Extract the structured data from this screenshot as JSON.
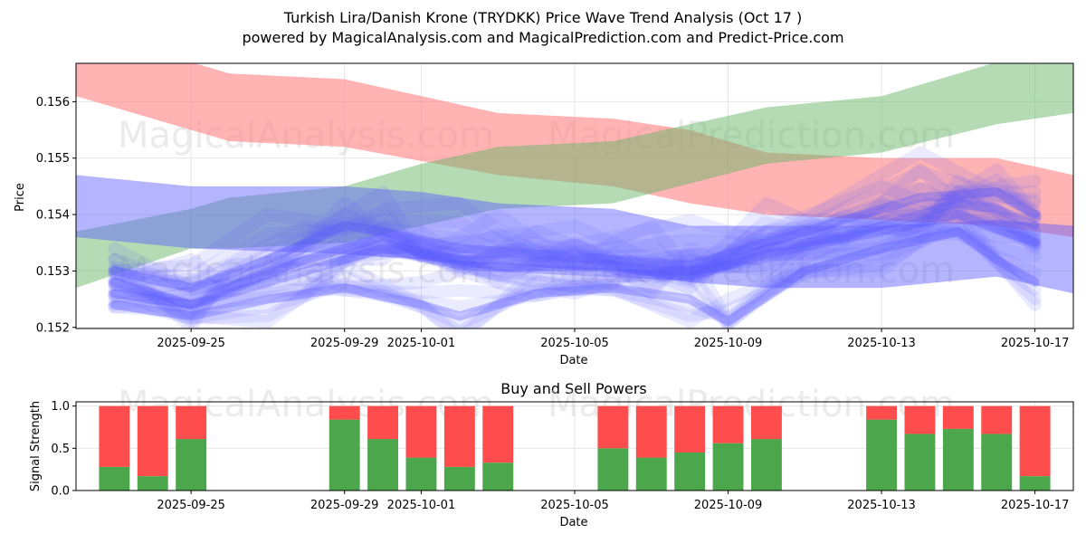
{
  "title_line1": "Turkish Lira/Danish Krone (TRYDKK) Price Wave Trend Analysis (Oct 17 )",
  "title_line2": "powered by MagicalAnalysis.com and MagicalPrediction.com and Predict-Price.com",
  "watermarks": [
    "MagicalAnalysis.com",
    "MagicalPrediction.com"
  ],
  "colors": {
    "red": "#ff8080",
    "green": "#6ab86a",
    "blue": "#5a5aff",
    "buy": "#4ca64c",
    "sell": "#ff4c4c"
  },
  "chart_data": [
    {
      "type": "area",
      "name": "price-wave-chart",
      "title": "",
      "xlabel": "Date",
      "ylabel": "Price",
      "x_domain": [
        "2025-09-22",
        "2025-10-18"
      ],
      "ylim": [
        0.15198,
        0.15668
      ],
      "xticks": [
        "2025-09-25",
        "2025-09-29",
        "2025-10-01",
        "2025-10-05",
        "2025-10-09",
        "2025-10-13",
        "2025-10-17"
      ],
      "yticks": [
        0.152,
        0.153,
        0.154,
        0.155,
        0.156
      ],
      "ytick_labels": [
        "0.152",
        "0.153",
        "0.154",
        "0.155",
        "0.156"
      ],
      "bands": [
        {
          "name": "red-band",
          "color": "red",
          "opacity": 0.6,
          "x": [
            "2025-09-22",
            "2025-09-25",
            "2025-09-26",
            "2025-09-29",
            "2025-10-03",
            "2025-10-06",
            "2025-10-08",
            "2025-10-10",
            "2025-10-13",
            "2025-10-16",
            "2025-10-18"
          ],
          "upper": [
            0.1568,
            0.1567,
            0.1565,
            0.1564,
            0.1558,
            0.1557,
            0.1555,
            0.1551,
            0.155,
            0.155,
            0.1547
          ],
          "lower": [
            0.1561,
            0.1555,
            0.1553,
            0.1552,
            0.1547,
            0.1545,
            0.1542,
            0.154,
            0.1539,
            0.1538,
            0.1536
          ]
        },
        {
          "name": "green-band",
          "color": "green",
          "opacity": 0.5,
          "x": [
            "2025-09-22",
            "2025-09-25",
            "2025-09-26",
            "2025-09-29",
            "2025-10-01",
            "2025-10-03",
            "2025-10-06",
            "2025-10-10",
            "2025-10-13",
            "2025-10-16",
            "2025-10-18"
          ],
          "upper": [
            0.1537,
            0.1541,
            0.1543,
            0.1545,
            0.1549,
            0.1552,
            0.1553,
            0.1559,
            0.1561,
            0.1567,
            0.1568
          ],
          "lower": [
            0.1527,
            0.1534,
            0.1534,
            0.1535,
            0.1538,
            0.1541,
            0.1542,
            0.1549,
            0.1551,
            0.1556,
            0.1558
          ]
        },
        {
          "name": "blue-band-wide",
          "color": "blue",
          "opacity": 0.45,
          "x": [
            "2025-09-22",
            "2025-09-25",
            "2025-09-29",
            "2025-10-01",
            "2025-10-03",
            "2025-10-06",
            "2025-10-08",
            "2025-10-10",
            "2025-10-13",
            "2025-10-16",
            "2025-10-18"
          ],
          "upper": [
            0.1547,
            0.1545,
            0.1545,
            0.1544,
            0.1542,
            0.1541,
            0.1538,
            0.1538,
            0.1538,
            0.1539,
            0.1538
          ],
          "lower": [
            0.1536,
            0.1534,
            0.1533,
            0.1532,
            0.153,
            0.153,
            0.1528,
            0.1527,
            0.1527,
            0.1529,
            0.1526
          ]
        }
      ],
      "wave_lines": [
        {
          "name": "wave-main",
          "x": [
            "2025-09-23",
            "2025-09-24",
            "2025-09-25",
            "2025-09-26",
            "2025-09-28",
            "2025-09-30",
            "2025-10-01",
            "2025-10-02",
            "2025-10-03",
            "2025-10-05",
            "2025-10-06",
            "2025-10-07",
            "2025-10-08",
            "2025-10-09",
            "2025-10-10",
            "2025-10-12",
            "2025-10-13",
            "2025-10-14",
            "2025-10-15",
            "2025-10-16",
            "2025-10-17"
          ],
          "values": [
            0.1528,
            0.1526,
            0.1524,
            0.1527,
            0.1532,
            0.1536,
            0.1533,
            0.1532,
            0.1532,
            0.1531,
            0.1531,
            0.153,
            0.153,
            0.1531,
            0.1534,
            0.1536,
            0.1538,
            0.154,
            0.1542,
            0.1541,
            0.1538
          ]
        },
        {
          "name": "wave-upper",
          "x": [
            "2025-09-23",
            "2025-09-25",
            "2025-09-27",
            "2025-09-29",
            "2025-09-30",
            "2025-10-02",
            "2025-10-04",
            "2025-10-06",
            "2025-10-08",
            "2025-10-10",
            "2025-10-12",
            "2025-10-14",
            "2025-10-16",
            "2025-10-17"
          ],
          "values": [
            0.153,
            0.1527,
            0.1532,
            0.1538,
            0.1537,
            0.1534,
            0.1533,
            0.1532,
            0.1531,
            0.1535,
            0.1539,
            0.1543,
            0.1544,
            0.154
          ]
        },
        {
          "name": "wave-lower",
          "x": [
            "2025-09-23",
            "2025-09-25",
            "2025-09-27",
            "2025-09-29",
            "2025-10-01",
            "2025-10-02",
            "2025-10-04",
            "2025-10-06",
            "2025-10-08",
            "2025-10-09",
            "2025-10-11",
            "2025-10-13",
            "2025-10-15",
            "2025-10-16",
            "2025-10-17"
          ],
          "values": [
            0.1524,
            0.1522,
            0.1525,
            0.1527,
            0.1524,
            0.1522,
            0.1526,
            0.1527,
            0.1525,
            0.1521,
            0.153,
            0.1534,
            0.1537,
            0.1532,
            0.1528
          ]
        },
        {
          "name": "wave-mid",
          "x": [
            "2025-09-23",
            "2025-09-25",
            "2025-09-28",
            "2025-09-30",
            "2025-10-02",
            "2025-10-05",
            "2025-10-08",
            "2025-10-10",
            "2025-10-13",
            "2025-10-15",
            "2025-10-17"
          ],
          "values": [
            0.1526,
            0.1524,
            0.153,
            0.1534,
            0.1531,
            0.153,
            0.1529,
            0.1533,
            0.1537,
            0.154,
            0.1535
          ]
        }
      ]
    },
    {
      "type": "bar",
      "name": "buy-sell-chart",
      "title": "Buy and Sell Powers",
      "xlabel": "Date",
      "ylabel": "Signal Strength",
      "x_domain": [
        "2025-09-22",
        "2025-10-18"
      ],
      "ylim": [
        0,
        1.05
      ],
      "xticks": [
        "2025-09-25",
        "2025-09-29",
        "2025-10-01",
        "2025-10-05",
        "2025-10-09",
        "2025-10-13",
        "2025-10-17"
      ],
      "yticks": [
        0,
        0.5,
        1
      ],
      "ytick_labels": [
        "0.0",
        "0.5",
        "1.0"
      ],
      "categories": [
        "2025-09-23",
        "2025-09-24",
        "2025-09-25",
        "2025-09-29",
        "2025-09-30",
        "2025-10-01",
        "2025-10-02",
        "2025-10-03",
        "2025-10-06",
        "2025-10-07",
        "2025-10-08",
        "2025-10-09",
        "2025-10-10",
        "2025-10-13",
        "2025-10-14",
        "2025-10-15",
        "2025-10-16",
        "2025-10-17"
      ],
      "series": [
        {
          "name": "Buy",
          "color": "buy",
          "values": [
            0.28,
            0.17,
            0.61,
            0.84,
            0.61,
            0.39,
            0.28,
            0.33,
            0.5,
            0.39,
            0.45,
            0.56,
            0.61,
            0.84,
            0.67,
            0.73,
            0.67,
            0.17
          ]
        },
        {
          "name": "Sell",
          "color": "sell",
          "values": [
            0.72,
            0.83,
            0.39,
            0.16,
            0.39,
            0.61,
            0.72,
            0.67,
            0.5,
            0.61,
            0.55,
            0.44,
            0.39,
            0.16,
            0.33,
            0.27,
            0.33,
            0.83
          ]
        }
      ]
    }
  ]
}
